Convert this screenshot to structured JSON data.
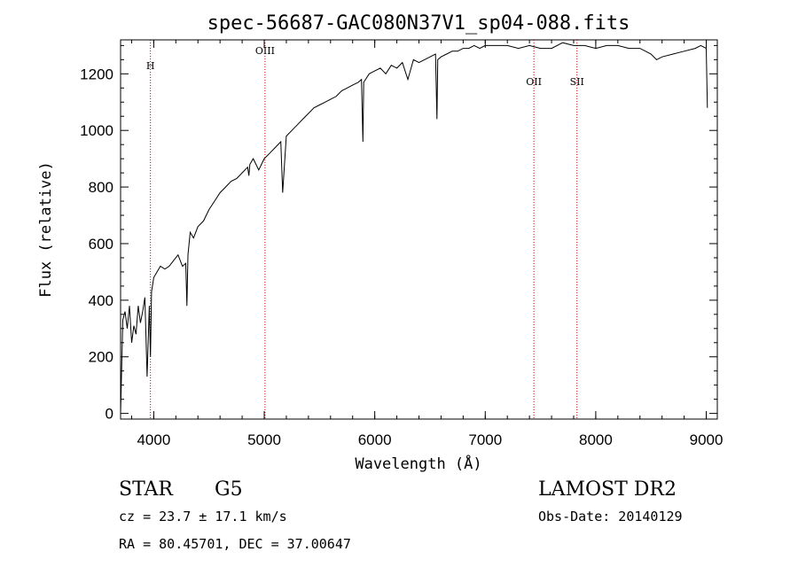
{
  "chart_data": {
    "type": "line",
    "title": "spec-56687-GAC080N37V1_sp04-088.fits",
    "xlabel": "Wavelength (Å)",
    "ylabel": "Flux (relative)",
    "xlim": [
      3700,
      9100
    ],
    "ylim": [
      -20,
      1320
    ],
    "x_ticks": [
      4000,
      5000,
      6000,
      7000,
      8000,
      9000
    ],
    "y_ticks": [
      0,
      200,
      400,
      600,
      800,
      1000,
      1200
    ],
    "grid": false,
    "series": [
      {
        "x": [
          3700,
          3720,
          3740,
          3760,
          3780,
          3800,
          3820,
          3840,
          3860,
          3880,
          3900,
          3920,
          3940,
          3960,
          3970,
          3980,
          4000,
          4030,
          4060,
          4100,
          4140,
          4180,
          4220,
          4260,
          4290,
          4300,
          4310,
          4330,
          4360,
          4400,
          4450,
          4500,
          4550,
          4600,
          4650,
          4700,
          4750,
          4800,
          4850,
          4861,
          4870,
          4900,
          4950,
          5000,
          5050,
          5100,
          5150,
          5167,
          5200,
          5250,
          5300,
          5350,
          5400,
          5450,
          5500,
          5550,
          5600,
          5650,
          5700,
          5750,
          5800,
          5850,
          5880,
          5893,
          5900,
          5950,
          6000,
          6050,
          6100,
          6150,
          6200,
          6250,
          6300,
          6350,
          6400,
          6450,
          6500,
          6550,
          6563,
          6570,
          6600,
          6650,
          6700,
          6750,
          6800,
          6850,
          6900,
          6950,
          7000,
          7100,
          7200,
          7300,
          7400,
          7500,
          7600,
          7700,
          7800,
          7900,
          8000,
          8100,
          8200,
          8300,
          8400,
          8500,
          8550,
          8600,
          8700,
          8800,
          8900,
          8950,
          9000,
          9010
        ],
        "values": [
          0,
          330,
          360,
          300,
          380,
          250,
          310,
          280,
          380,
          320,
          360,
          410,
          130,
          380,
          200,
          430,
          480,
          500,
          520,
          510,
          520,
          540,
          560,
          520,
          530,
          380,
          560,
          640,
          620,
          660,
          680,
          720,
          750,
          780,
          800,
          820,
          830,
          850,
          870,
          840,
          880,
          900,
          860,
          900,
          920,
          940,
          960,
          780,
          980,
          1000,
          1020,
          1040,
          1060,
          1080,
          1090,
          1100,
          1110,
          1120,
          1140,
          1150,
          1160,
          1170,
          1180,
          960,
          1170,
          1200,
          1210,
          1220,
          1200,
          1230,
          1220,
          1240,
          1180,
          1250,
          1240,
          1250,
          1260,
          1270,
          1040,
          1250,
          1260,
          1270,
          1280,
          1280,
          1290,
          1290,
          1300,
          1290,
          1300,
          1300,
          1300,
          1290,
          1300,
          1290,
          1290,
          1310,
          1300,
          1300,
          1290,
          1300,
          1300,
          1290,
          1290,
          1270,
          1250,
          1260,
          1270,
          1280,
          1290,
          1300,
          1290,
          1080
        ]
      }
    ],
    "line_markers": [
      {
        "label": "H",
        "x": 3970
      },
      {
        "label": "OIII",
        "x": 5007
      },
      {
        "label": "OII",
        "x": 7440
      },
      {
        "label": "SII",
        "x": 7830
      }
    ]
  },
  "info": {
    "class": "STAR",
    "subclass": "G5",
    "survey": "LAMOST DR2",
    "cz": "cz = 23.7 ± 17.1 km/s",
    "obs_date": "Obs-Date: 20140129",
    "coords": "RA =  80.45701, DEC =  37.00647"
  }
}
